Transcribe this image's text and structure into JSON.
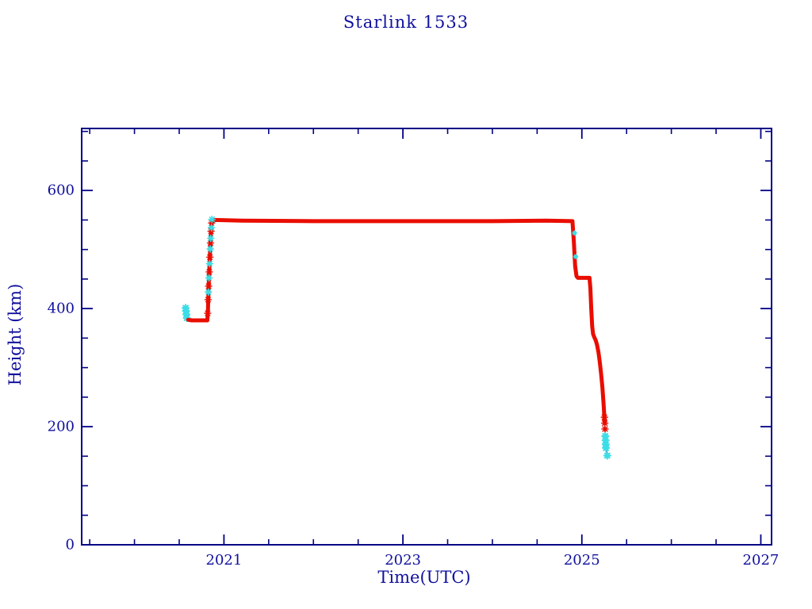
{
  "page": {
    "background": "#ffffff"
  },
  "chart_data": {
    "type": "line",
    "title": "Starlink 1533",
    "xlabel": "Time(UTC)",
    "ylabel": "Height (km)",
    "xlim": [
      2019.41,
      2027.12
    ],
    "ylim": [
      0,
      705
    ],
    "x_major_ticks": [
      2021,
      2023,
      2025,
      2027
    ],
    "x_minor_step": 0.5,
    "y_major_ticks": [
      0,
      200,
      400,
      600
    ],
    "y_minor_step": 50,
    "grid": false,
    "legend": null,
    "colors": {
      "frame": "#000085",
      "text": "#10109e",
      "red": "#e90d00",
      "cyan": "#3cdde6",
      "tail_line": "#000085"
    },
    "series": [
      {
        "name": "start-cyan-markers",
        "color": "#3cdde6",
        "type": "markers",
        "marker_size": 4,
        "stroke": 2.2,
        "points": [
          [
            2020.572,
            401
          ],
          [
            2020.576,
            396
          ],
          [
            2020.58,
            390
          ],
          [
            2020.585,
            384
          ]
        ]
      },
      {
        "name": "main-red-track",
        "color": "#e90d00",
        "type": "line",
        "width": 5,
        "points": [
          [
            2020.6,
            381
          ],
          [
            2020.64,
            380
          ],
          [
            2020.815,
            380
          ],
          [
            2020.822,
            400
          ],
          [
            2020.83,
            440
          ],
          [
            2020.84,
            480
          ],
          [
            2020.85,
            515
          ],
          [
            2020.858,
            540
          ],
          [
            2020.865,
            548
          ],
          [
            2020.9,
            550
          ],
          [
            2021.2,
            549
          ],
          [
            2022.0,
            548
          ],
          [
            2023.0,
            548
          ],
          [
            2024.0,
            548
          ],
          [
            2024.6,
            549
          ],
          [
            2024.895,
            548
          ],
          [
            2024.91,
            515
          ],
          [
            2024.925,
            472
          ],
          [
            2024.94,
            455
          ],
          [
            2024.955,
            452
          ],
          [
            2025.085,
            452
          ],
          [
            2025.095,
            435
          ],
          [
            2025.105,
            400
          ],
          [
            2025.115,
            370
          ],
          [
            2025.125,
            357
          ],
          [
            2025.14,
            351
          ],
          [
            2025.155,
            346
          ],
          [
            2025.17,
            338
          ],
          [
            2025.185,
            326
          ],
          [
            2025.2,
            310
          ],
          [
            2025.215,
            290
          ],
          [
            2025.23,
            266
          ],
          [
            2025.242,
            240
          ],
          [
            2025.25,
            220
          ],
          [
            2025.256,
            206
          ]
        ]
      },
      {
        "name": "rise-red-stars",
        "color": "#e90d00",
        "type": "markers",
        "marker_size": 4,
        "stroke": 1.4,
        "points": [
          [
            2020.818,
            392
          ],
          [
            2020.823,
            415
          ],
          [
            2020.829,
            438
          ],
          [
            2020.836,
            462
          ],
          [
            2020.843,
            487
          ],
          [
            2020.85,
            511
          ],
          [
            2020.856,
            531
          ],
          [
            2020.862,
            545
          ]
        ]
      },
      {
        "name": "rise-cyan-stars",
        "color": "#3cdde6",
        "type": "markers",
        "marker_size": 4,
        "stroke": 1.6,
        "points": [
          [
            2020.826,
            428
          ],
          [
            2020.833,
            452
          ],
          [
            2020.84,
            476
          ],
          [
            2020.847,
            501
          ],
          [
            2020.853,
            519
          ],
          [
            2020.86,
            537
          ],
          [
            2020.866,
            551
          ]
        ]
      },
      {
        "name": "descent-cyan-specks",
        "color": "#3cdde6",
        "type": "markers",
        "marker_size": 2.5,
        "stroke": 1.6,
        "points": [
          [
            2024.918,
            528
          ],
          [
            2024.932,
            488
          ]
        ]
      },
      {
        "name": "tail-connector-line",
        "color": "#000085",
        "type": "line",
        "width": 1.3,
        "points": [
          [
            2025.254,
            210
          ],
          [
            2025.262,
            184
          ],
          [
            2025.268,
            166
          ],
          [
            2025.284,
            151
          ]
        ]
      },
      {
        "name": "tail-red-stars",
        "color": "#e90d00",
        "type": "markers",
        "marker_size": 4,
        "stroke": 1.5,
        "points": [
          [
            2025.252,
            216
          ],
          [
            2025.256,
            206
          ],
          [
            2025.259,
            196
          ]
        ]
      },
      {
        "name": "tail-cyan-stars",
        "color": "#3cdde6",
        "type": "markers",
        "marker_size": 4,
        "stroke": 2.2,
        "points": [
          [
            2025.262,
            184
          ],
          [
            2025.265,
            177
          ],
          [
            2025.267,
            170
          ],
          [
            2025.269,
            164
          ],
          [
            2025.284,
            151
          ]
        ]
      }
    ]
  }
}
